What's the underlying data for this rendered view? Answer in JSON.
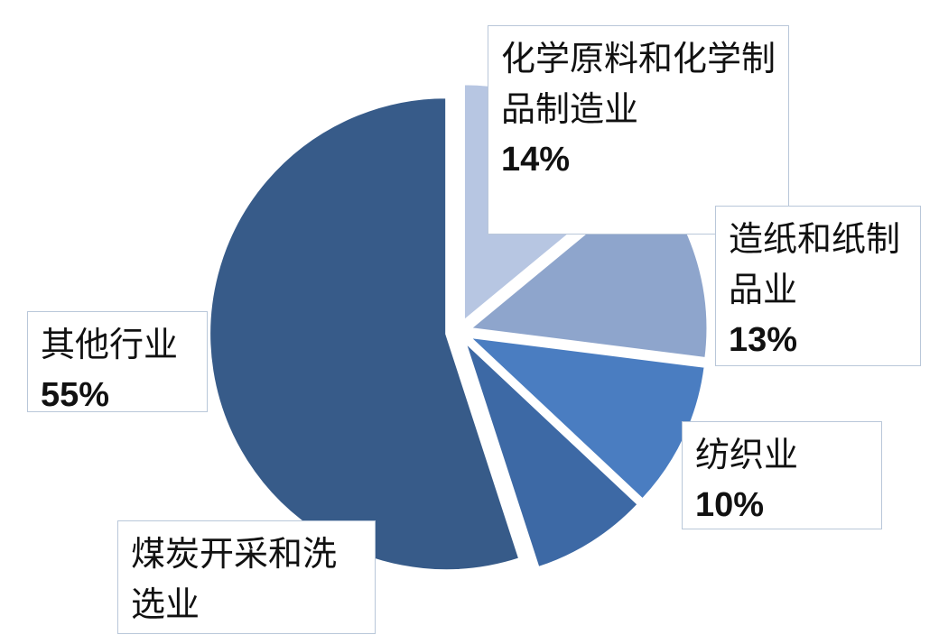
{
  "chart_data": {
    "type": "pie",
    "categories": [
      "化学原料和化学制品制造业",
      "造纸和纸制品业",
      "纺织业",
      "煤炭开采和洗选业",
      "其他行业"
    ],
    "values": [
      14,
      13,
      10,
      8,
      55
    ],
    "value_labels": [
      "14%",
      "13%",
      "10%",
      null,
      "55%"
    ],
    "colors": [
      "#b7c6e2",
      "#8ea5cc",
      "#4a7dc1",
      "#3d69a5",
      "#375b89"
    ]
  }
}
